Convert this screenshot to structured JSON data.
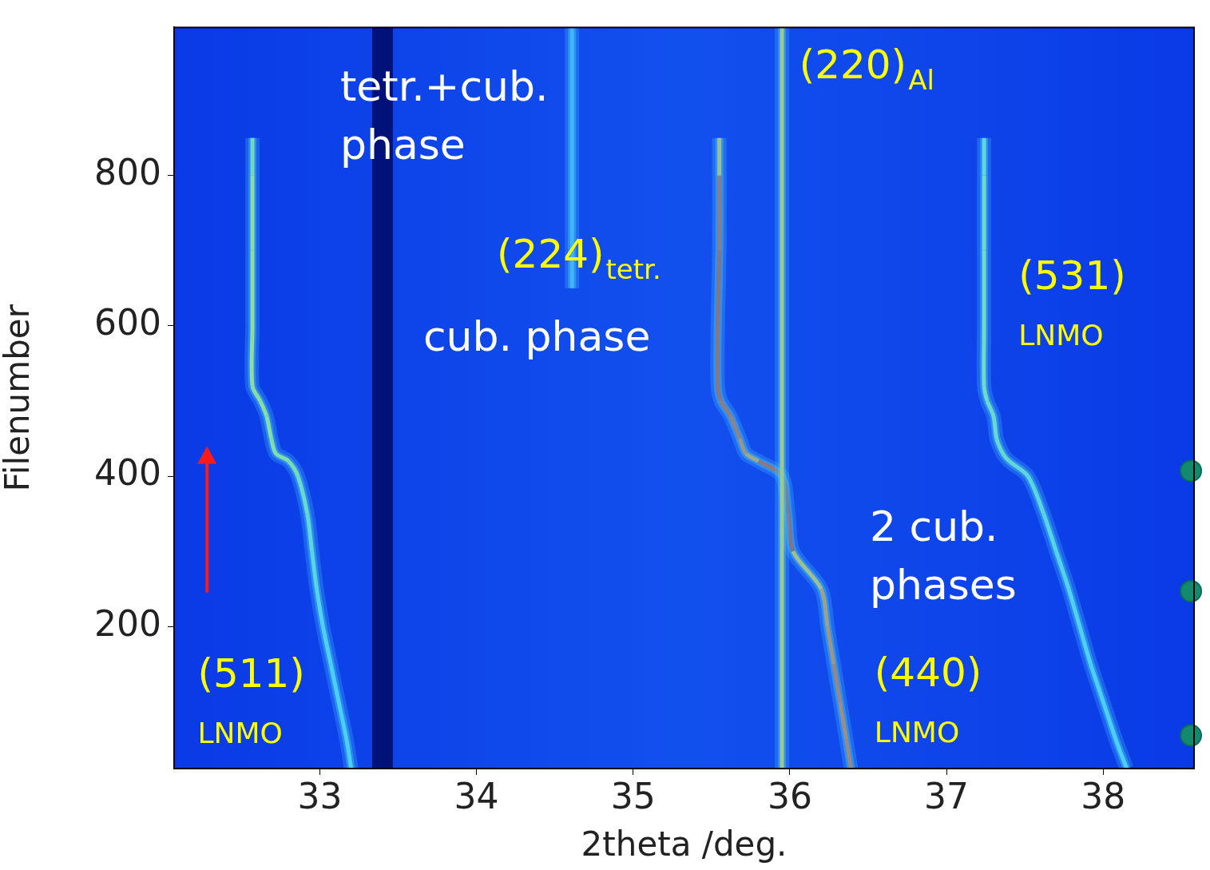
{
  "chart_data": {
    "type": "line",
    "x_label": "2theta /deg.",
    "y_label": "Filenumber",
    "xlim": [
      32.07,
      38.58
    ],
    "xticks": [
      33,
      34,
      35,
      36,
      37,
      38
    ],
    "ylim": [
      11,
      997
    ],
    "yticks": [
      200,
      400,
      600,
      800
    ],
    "grid": false,
    "series": [
      {
        "x": [
          33.4,
          33.4
        ],
        "y": [
          11,
          997
        ],
        "color": "#00127a",
        "line_style": "wide"
      },
      {
        "x": [
          34.61,
          34.61
        ],
        "y": [
          650,
          997
        ],
        "color": "#2f9ff0"
      },
      {
        "x": [
          35.95,
          35.95
        ],
        "y": [
          11,
          997
        ],
        "color": "#f2c81c"
      },
      {
        "x": [
          33.2,
          33.17,
          33.12,
          33.07,
          33.02,
          32.98,
          32.95,
          32.92,
          32.86,
          32.8,
          32.72,
          32.69,
          32.66,
          32.62,
          32.57,
          32.57,
          32.57,
          32.57,
          32.57
        ],
        "y": [
          11,
          50,
          100,
          150,
          200,
          250,
          300,
          350,
          400,
          420,
          430,
          450,
          480,
          500,
          520,
          600,
          700,
          800,
          850
        ],
        "colors": [
          "#45d4f2",
          "#45d4f2",
          "#45d4f2",
          "#4cd8ea",
          "#55dce0",
          "#5ee0c8",
          "#70e4b8",
          "#86e8a0",
          "#a6ee6a",
          "#b8f05a",
          "#b8f05a",
          "#c0f050",
          "#c8f048",
          "#d0f040",
          "#d4f03c",
          "#d4f03c",
          "#c8f048",
          "#9ee87a",
          "#5cd8e0"
        ]
      },
      {
        "x": [
          38.15,
          38.08,
          38.0,
          37.92,
          37.85,
          37.78,
          37.7,
          37.62,
          37.52,
          37.4,
          37.36,
          37.32,
          37.3,
          37.26,
          37.24,
          37.24,
          37.24,
          37.24,
          37.24
        ],
        "y": [
          11,
          50,
          100,
          150,
          200,
          250,
          300,
          350,
          400,
          420,
          430,
          450,
          480,
          500,
          520,
          600,
          700,
          800,
          850
        ],
        "colors": [
          "#45d4f2",
          "#45d4f2",
          "#45d4f2",
          "#4cd8ea",
          "#50dae4",
          "#58dcd8",
          "#60e0cc",
          "#66e2c0",
          "#70e4b4",
          "#7ee6a8",
          "#7ee6a8",
          "#86e8a0",
          "#86e8a0",
          "#8ee898",
          "#96ea90",
          "#96ea90",
          "#8ee898",
          "#70e2c0",
          "#50d6e4"
        ]
      },
      {
        "x": [
          36.39,
          36.36,
          36.32,
          36.28,
          36.24,
          36.2,
          36.02,
          35.99,
          35.95,
          35.8,
          35.72,
          35.68,
          35.62,
          35.56,
          35.54,
          35.54,
          35.55,
          35.55,
          35.55
        ],
        "y": [
          11,
          50,
          100,
          150,
          200,
          250,
          300,
          350,
          400,
          420,
          430,
          450,
          480,
          500,
          520,
          600,
          700,
          800,
          850
        ],
        "colors": [
          "#e8400c",
          "#ee4a0c",
          "#e8380a",
          "#f05a10",
          "#f27016",
          "#f6b020",
          "#c01000",
          "#a80800",
          "#d02000",
          "#f08014",
          "#e85a10",
          "#d83008",
          "#d02800",
          "#c81800",
          "#c81800",
          "#c01400",
          "#d02400",
          "#f0b020",
          "#7ee0b0"
        ]
      },
      {
        "x": [
          38.56,
          38.56,
          38.56
        ],
        "y": [
          407,
          247,
          55
        ],
        "color": "#138a6e",
        "marker": "circle",
        "line_style": "none"
      }
    ],
    "arrow": {
      "x": 32.28,
      "y": [
        245,
        440
      ],
      "color": "#ff1a1a"
    },
    "annotations": [
      {
        "lines": [
          "tetr.+cub.",
          "phase"
        ],
        "x": 33.13,
        "y": 900,
        "color": "#ffffff"
      },
      {
        "text": "(224)",
        "sub": "tetr.",
        "x": 34.13,
        "y": 678,
        "color": "#ffff00"
      },
      {
        "lines": [
          "cub. phase"
        ],
        "x": 33.66,
        "y": 567,
        "color": "#ffffff"
      },
      {
        "text": "(220)",
        "sub": "Al",
        "x": 36.06,
        "y": 929,
        "color": "#ffff00"
      },
      {
        "text": "(531)",
        "note": "LNMO",
        "x": 37.46,
        "y": 649,
        "color": "#ffff00"
      },
      {
        "lines": [
          "2 cub.",
          "phases"
        ],
        "x": 36.51,
        "y": 314,
        "color": "#ffffff"
      },
      {
        "text": "(440)",
        "note": "LNMO",
        "x": 36.54,
        "y": 121,
        "color": "#ffff00"
      },
      {
        "text": "(511)",
        "note": "LNMO",
        "x": 32.22,
        "y": 119,
        "color": "#ffff00"
      }
    ]
  }
}
